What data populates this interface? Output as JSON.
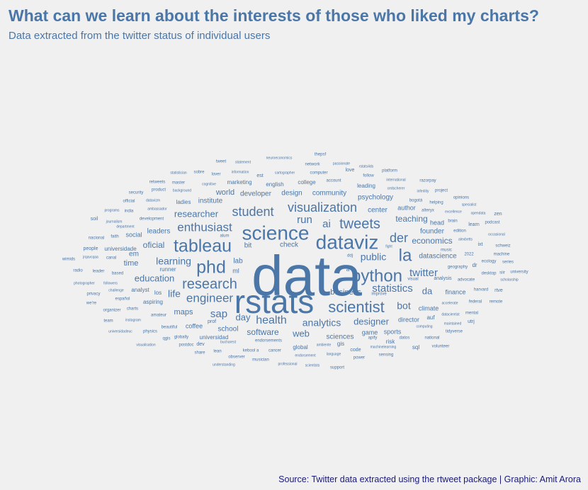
{
  "title": "What can we learn about the interests of those who liked my charts?",
  "subtitle": "Data extracted from the twitter status of individual users",
  "caption": "Source: Twitter data extracted using the rtweet package | Graphic: Amit Arora",
  "colors": {
    "text": "#4a76a8",
    "caption": "#1a1a7a",
    "background": "#f0f0f0"
  },
  "chart_data": {
    "type": "wordcloud",
    "words": [
      {
        "word": "data",
        "size": 80
      },
      {
        "word": "rstats",
        "size": 46
      },
      {
        "word": "science",
        "size": 28
      },
      {
        "word": "dataviz",
        "size": 28
      },
      {
        "word": "tableau",
        "size": 25
      },
      {
        "word": "phd",
        "size": 25
      },
      {
        "word": "python",
        "size": 24
      },
      {
        "word": "la",
        "size": 24
      },
      {
        "word": "scientist",
        "size": 22
      },
      {
        "word": "research",
        "size": 20
      },
      {
        "word": "tweets",
        "size": 20
      },
      {
        "word": "visualization",
        "size": 18
      },
      {
        "word": "student",
        "size": 18
      },
      {
        "word": "der",
        "size": 18
      },
      {
        "word": "enthusiast",
        "size": 17
      },
      {
        "word": "engineer",
        "size": 17
      },
      {
        "word": "health",
        "size": 16
      },
      {
        "word": "twitter",
        "size": 15
      },
      {
        "word": "statistics",
        "size": 15
      },
      {
        "word": "sap",
        "size": 15
      },
      {
        "word": "analytics",
        "size": 14
      },
      {
        "word": "ai",
        "size": 15
      },
      {
        "word": "run",
        "size": 15
      },
      {
        "word": "bot",
        "size": 14
      },
      {
        "word": "learning",
        "size": 14
      },
      {
        "word": "life",
        "size": 14
      },
      {
        "word": "public",
        "size": 14
      },
      {
        "word": "designer",
        "size": 13
      },
      {
        "word": "researcher",
        "size": 13
      },
      {
        "word": "education",
        "size": 13
      },
      {
        "word": "web",
        "size": 13
      },
      {
        "word": "software",
        "size": 12
      },
      {
        "word": "economics",
        "size": 12
      },
      {
        "word": "da",
        "size": 13
      },
      {
        "word": "teaching",
        "size": 12
      },
      {
        "word": "day",
        "size": 13
      },
      {
        "word": "oficial",
        "size": 12
      },
      {
        "word": "maps",
        "size": 11
      },
      {
        "word": "business",
        "size": 11
      },
      {
        "word": "center",
        "size": 10
      },
      {
        "word": "founder",
        "size": 10
      },
      {
        "word": "world",
        "size": 11
      },
      {
        "word": "developer",
        "size": 10
      },
      {
        "word": "design",
        "size": 10
      },
      {
        "word": "community",
        "size": 10
      },
      {
        "word": "psychology",
        "size": 10
      },
      {
        "word": "datascience",
        "size": 10
      },
      {
        "word": "sciences",
        "size": 10
      },
      {
        "word": "time",
        "size": 11
      },
      {
        "word": "leaders",
        "size": 10
      },
      {
        "word": "institute",
        "size": 10
      },
      {
        "word": "school",
        "size": 10
      },
      {
        "word": "check",
        "size": 10
      },
      {
        "word": "climate",
        "size": 9
      },
      {
        "word": "director",
        "size": 9
      },
      {
        "word": "sports",
        "size": 9
      },
      {
        "word": "game",
        "size": 9
      },
      {
        "word": "author",
        "size": 9
      },
      {
        "word": "head",
        "size": 9
      },
      {
        "word": "bit",
        "size": 10
      },
      {
        "word": "lab",
        "size": 10
      },
      {
        "word": "ml",
        "size": 9
      },
      {
        "word": "em",
        "size": 10
      },
      {
        "word": "social",
        "size": 9
      },
      {
        "word": "finance",
        "size": 9
      },
      {
        "word": "coffee",
        "size": 9
      },
      {
        "word": "universidad",
        "size": 8
      },
      {
        "word": "universidade",
        "size": 8
      },
      {
        "word": "analyst",
        "size": 8
      },
      {
        "word": "aspiring",
        "size": 8
      },
      {
        "word": "runner",
        "size": 8
      },
      {
        "word": "ladies",
        "size": 8
      },
      {
        "word": "english",
        "size": 8
      },
      {
        "word": "college",
        "size": 8
      },
      {
        "word": "marketing",
        "size": 8
      },
      {
        "word": "leading",
        "size": 8
      },
      {
        "word": "global",
        "size": 8
      },
      {
        "word": "gis",
        "size": 8
      },
      {
        "word": "risk",
        "size": 8
      },
      {
        "word": "sql",
        "size": 8
      },
      {
        "word": "code",
        "size": 7
      },
      {
        "word": "los",
        "size": 8
      },
      {
        "word": "prof",
        "size": 7
      },
      {
        "word": "dev",
        "size": 7
      },
      {
        "word": "auf",
        "size": 8
      },
      {
        "word": "dr",
        "size": 8
      },
      {
        "word": "utrj",
        "size": 7
      },
      {
        "word": "ixt",
        "size": 7
      },
      {
        "word": "zen",
        "size": 7
      },
      {
        "word": "learn",
        "size": 7
      },
      {
        "word": "machine",
        "size": 6
      },
      {
        "word": "ecology",
        "size": 6
      },
      {
        "word": "series",
        "size": 6
      },
      {
        "word": "desktop",
        "size": 6
      },
      {
        "word": "siir",
        "size": 6
      },
      {
        "word": "university",
        "size": 6
      },
      {
        "word": "scholarship",
        "size": 5
      },
      {
        "word": "rtve",
        "size": 7
      },
      {
        "word": "harvard",
        "size": 6
      },
      {
        "word": "federal",
        "size": 6
      },
      {
        "word": "remote",
        "size": 6
      },
      {
        "word": "mental",
        "size": 6
      },
      {
        "word": "datacientist",
        "size": 5
      },
      {
        "word": "maintained",
        "size": 5
      },
      {
        "word": "tidyverse",
        "size": 6
      },
      {
        "word": "accelerate",
        "size": 5
      },
      {
        "word": "computing",
        "size": 5
      },
      {
        "word": "national",
        "size": 6
      },
      {
        "word": "volunteer",
        "size": 6
      },
      {
        "word": "analysis",
        "size": 7
      },
      {
        "word": "advocate",
        "size": 6
      },
      {
        "word": "geography",
        "size": 6
      },
      {
        "word": "2022",
        "size": 6
      },
      {
        "word": "music",
        "size": 6
      },
      {
        "word": "edition",
        "size": 6
      },
      {
        "word": "alexbetts",
        "size": 5
      },
      {
        "word": "schweiz",
        "size": 6
      },
      {
        "word": "occasional",
        "size": 5
      },
      {
        "word": "podcast",
        "size": 6
      },
      {
        "word": "opendata",
        "size": 5
      },
      {
        "word": "brain",
        "size": 6
      },
      {
        "word": "excellence",
        "size": 5
      },
      {
        "word": "specialist",
        "size": 5
      },
      {
        "word": "opinions",
        "size": 6
      },
      {
        "word": "helping",
        "size": 6
      },
      {
        "word": "alteryx",
        "size": 6
      },
      {
        "word": "bogotá",
        "size": 6
      },
      {
        "word": "project",
        "size": 6
      },
      {
        "word": "inferility",
        "size": 5
      },
      {
        "word": "razorpay",
        "size": 6
      },
      {
        "word": "international",
        "size": 5
      },
      {
        "word": "cedscherer",
        "size": 5
      },
      {
        "word": "platform",
        "size": 6
      },
      {
        "word": "follow",
        "size": 6
      },
      {
        "word": "love",
        "size": 7
      },
      {
        "word": "rstats4ds",
        "size": 5
      },
      {
        "word": "passionate",
        "size": 5
      },
      {
        "word": "account",
        "size": 6
      },
      {
        "word": "network",
        "size": 6
      },
      {
        "word": "computer",
        "size": 6
      },
      {
        "word": "thepsf",
        "size": 6
      },
      {
        "word": "neuroeconomics",
        "size": 5
      },
      {
        "word": "statement",
        "size": 5
      },
      {
        "word": "tweet",
        "size": 6
      },
      {
        "word": "information",
        "size": 5
      },
      {
        "word": "cartographer",
        "size": 5
      },
      {
        "word": "est",
        "size": 7
      },
      {
        "word": "lover",
        "size": 6
      },
      {
        "word": "sobre",
        "size": 6
      },
      {
        "word": "statistician",
        "size": 5
      },
      {
        "word": "master",
        "size": 6
      },
      {
        "word": "cognitive",
        "size": 5
      },
      {
        "word": "retweets",
        "size": 6
      },
      {
        "word": "background",
        "size": 5
      },
      {
        "word": "product",
        "size": 6
      },
      {
        "word": "security",
        "size": 6
      },
      {
        "word": "official",
        "size": 6
      },
      {
        "word": "datavizm",
        "size": 5
      },
      {
        "word": "ambassador",
        "size": 5
      },
      {
        "word": "programs",
        "size": 5
      },
      {
        "word": "india",
        "size": 6
      },
      {
        "word": "soil",
        "size": 7
      },
      {
        "word": "journalism",
        "size": 5
      },
      {
        "word": "development",
        "size": 6
      },
      {
        "word": "department",
        "size": 5
      },
      {
        "word": "nacional",
        "size": 6
      },
      {
        "word": "faith",
        "size": 6
      },
      {
        "word": "alum",
        "size": 6
      },
      {
        "word": "people",
        "size": 7
      },
      {
        "word": "jrqavcqaa",
        "size": 5
      },
      {
        "word": "canal",
        "size": 6
      },
      {
        "word": "wimids",
        "size": 6
      },
      {
        "word": "radio",
        "size": 6
      },
      {
        "word": "leader",
        "size": 6
      },
      {
        "word": "based",
        "size": 6
      },
      {
        "word": "photographer",
        "size": 5
      },
      {
        "word": "followers",
        "size": 5
      },
      {
        "word": "privacy",
        "size": 6
      },
      {
        "word": "challenge",
        "size": 5
      },
      {
        "word": "we're",
        "size": 6
      },
      {
        "word": "español",
        "size": 6
      },
      {
        "word": "organizer",
        "size": 6
      },
      {
        "word": "charts",
        "size": 6
      },
      {
        "word": "team",
        "size": 6
      },
      {
        "word": "instagram",
        "size": 5
      },
      {
        "word": "amateur",
        "size": 6
      },
      {
        "word": "beautiful",
        "size": 6
      },
      {
        "word": "universidadeuc",
        "size": 5
      },
      {
        "word": "physics",
        "size": 6
      },
      {
        "word": "qgis",
        "size": 6
      },
      {
        "word": "globally",
        "size": 6
      },
      {
        "word": "visualisation",
        "size": 5
      },
      {
        "word": "postdoc",
        "size": 6
      },
      {
        "word": "bucharest",
        "size": 5
      },
      {
        "word": "share",
        "size": 6
      },
      {
        "word": "lean",
        "size": 6
      },
      {
        "word": "observer",
        "size": 6
      },
      {
        "word": "understanding",
        "size": 5
      },
      {
        "word": "kebool a",
        "size": 6
      },
      {
        "word": "musician",
        "size": 6
      },
      {
        "word": "endorsements",
        "size": 6
      },
      {
        "word": "cancer",
        "size": 6
      },
      {
        "word": "professional",
        "size": 5
      },
      {
        "word": "endorsement",
        "size": 5
      },
      {
        "word": "ambiente",
        "size": 5
      },
      {
        "word": "language",
        "size": 5
      },
      {
        "word": "scientists",
        "size": 5
      },
      {
        "word": "support",
        "size": 6
      },
      {
        "word": "power",
        "size": 6
      },
      {
        "word": "machinelearning",
        "size": 5
      },
      {
        "word": "sensing",
        "size": 6
      },
      {
        "word": "apify",
        "size": 6
      },
      {
        "word": "datos",
        "size": 6
      },
      {
        "word": "visual",
        "size": 6
      },
      {
        "word": "improve",
        "size": 6
      },
      {
        "word": "ddj",
        "size": 6
      },
      {
        "word": "à",
        "size": 8
      },
      {
        "word": "fight",
        "size": 5
      }
    ]
  }
}
